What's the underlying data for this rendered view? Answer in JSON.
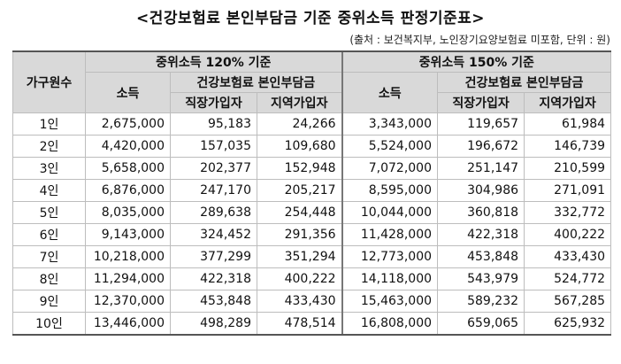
{
  "title": "<건강보험료 본인부담금 기준 중위소득 판정기준표>",
  "note": "(출처 : 보건복지부, 노인장기요양보험료 미포함, 단위 : 원)",
  "headers": {
    "household": "가구원수",
    "group120": "중위소득 120% 기준",
    "group150": "중위소득 150% 기준",
    "income": "소득",
    "premium": "건강보험료 본인부담금",
    "workplace": "직장가입자",
    "regional": "지역가입자"
  },
  "rows": [
    {
      "size": "1인",
      "inc120": "2,675,000",
      "w120": "95,183",
      "r120": "24,266",
      "inc150": "3,343,000",
      "w150": "119,657",
      "r150": "61,984"
    },
    {
      "size": "2인",
      "inc120": "4,420,000",
      "w120": "157,035",
      "r120": "109,680",
      "inc150": "5,524,000",
      "w150": "196,672",
      "r150": "146,739"
    },
    {
      "size": "3인",
      "inc120": "5,658,000",
      "w120": "202,377",
      "r120": "152,948",
      "inc150": "7,072,000",
      "w150": "251,147",
      "r150": "210,599"
    },
    {
      "size": "4인",
      "inc120": "6,876,000",
      "w120": "247,170",
      "r120": "205,217",
      "inc150": "8,595,000",
      "w150": "304,986",
      "r150": "271,091"
    },
    {
      "size": "5인",
      "inc120": "8,035,000",
      "w120": "289,638",
      "r120": "254,448",
      "inc150": "10,044,000",
      "w150": "360,818",
      "r150": "332,772"
    },
    {
      "size": "6인",
      "inc120": "9,143,000",
      "w120": "324,452",
      "r120": "291,356",
      "inc150": "11,428,000",
      "w150": "422,318",
      "r150": "400,222"
    },
    {
      "size": "7인",
      "inc120": "10,218,000",
      "w120": "377,299",
      "r120": "351,294",
      "inc150": "12,773,000",
      "w150": "453,848",
      "r150": "433,430"
    },
    {
      "size": "8인",
      "inc120": "11,294,000",
      "w120": "422,318",
      "r120": "400,222",
      "inc150": "14,118,000",
      "w150": "543,979",
      "r150": "524,772"
    },
    {
      "size": "9인",
      "inc120": "12,370,000",
      "w120": "453,848",
      "r120": "433,430",
      "inc150": "15,463,000",
      "w150": "589,232",
      "r150": "567,285"
    },
    {
      "size": "10인",
      "inc120": "13,446,000",
      "w120": "498,289",
      "r120": "478,514",
      "inc150": "16,808,000",
      "w150": "659,065",
      "r150": "625,932"
    }
  ]
}
